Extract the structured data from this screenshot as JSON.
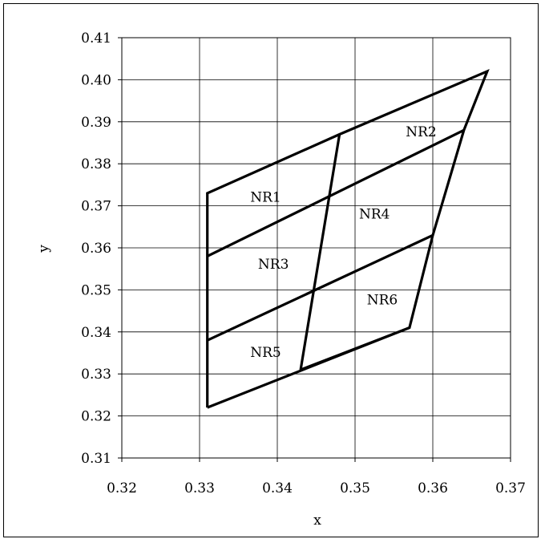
{
  "chart_data": {
    "type": "line",
    "xlabel": "x",
    "ylabel": "y",
    "xlim": [
      0.32,
      0.37
    ],
    "ylim": [
      0.31,
      0.41
    ],
    "x_ticks": [
      "0.32",
      "0.33",
      "0.34",
      "0.35",
      "0.36",
      "0.37"
    ],
    "y_ticks": [
      "0.31",
      "0.32",
      "0.33",
      "0.34",
      "0.35",
      "0.36",
      "0.37",
      "0.38",
      "0.39",
      "0.40",
      "0.41"
    ],
    "grid": true,
    "series": [
      {
        "points": [
          [
            0.331,
            0.322
          ],
          [
            0.357,
            0.341
          ],
          [
            0.36,
            0.363
          ],
          [
            0.364,
            0.388
          ],
          [
            0.367,
            0.402
          ],
          [
            0.348,
            0.387
          ],
          [
            0.331,
            0.373
          ],
          [
            0.331,
            0.358
          ],
          [
            0.331,
            0.338
          ],
          [
            0.331,
            0.322
          ]
        ]
      },
      {
        "points": [
          [
            0.331,
            0.358
          ],
          [
            0.364,
            0.388
          ]
        ]
      },
      {
        "points": [
          [
            0.331,
            0.338
          ],
          [
            0.36,
            0.363
          ]
        ]
      },
      {
        "points": [
          [
            0.348,
            0.387
          ],
          [
            0.343,
            0.331
          ]
        ]
      },
      {
        "points": [
          [
            0.343,
            0.331
          ],
          [
            0.357,
            0.341
          ]
        ]
      }
    ],
    "regions": [
      {
        "label": "NR1",
        "x": 0.3385,
        "y": 0.371
      },
      {
        "label": "NR2",
        "x": 0.3585,
        "y": 0.3865
      },
      {
        "label": "NR3",
        "x": 0.3395,
        "y": 0.355
      },
      {
        "label": "NR4",
        "x": 0.3525,
        "y": 0.367
      },
      {
        "label": "NR5",
        "x": 0.3385,
        "y": 0.334
      },
      {
        "label": "NR6",
        "x": 0.3535,
        "y": 0.3465
      }
    ],
    "line_color": "#000000",
    "grid_color": "#000000"
  }
}
